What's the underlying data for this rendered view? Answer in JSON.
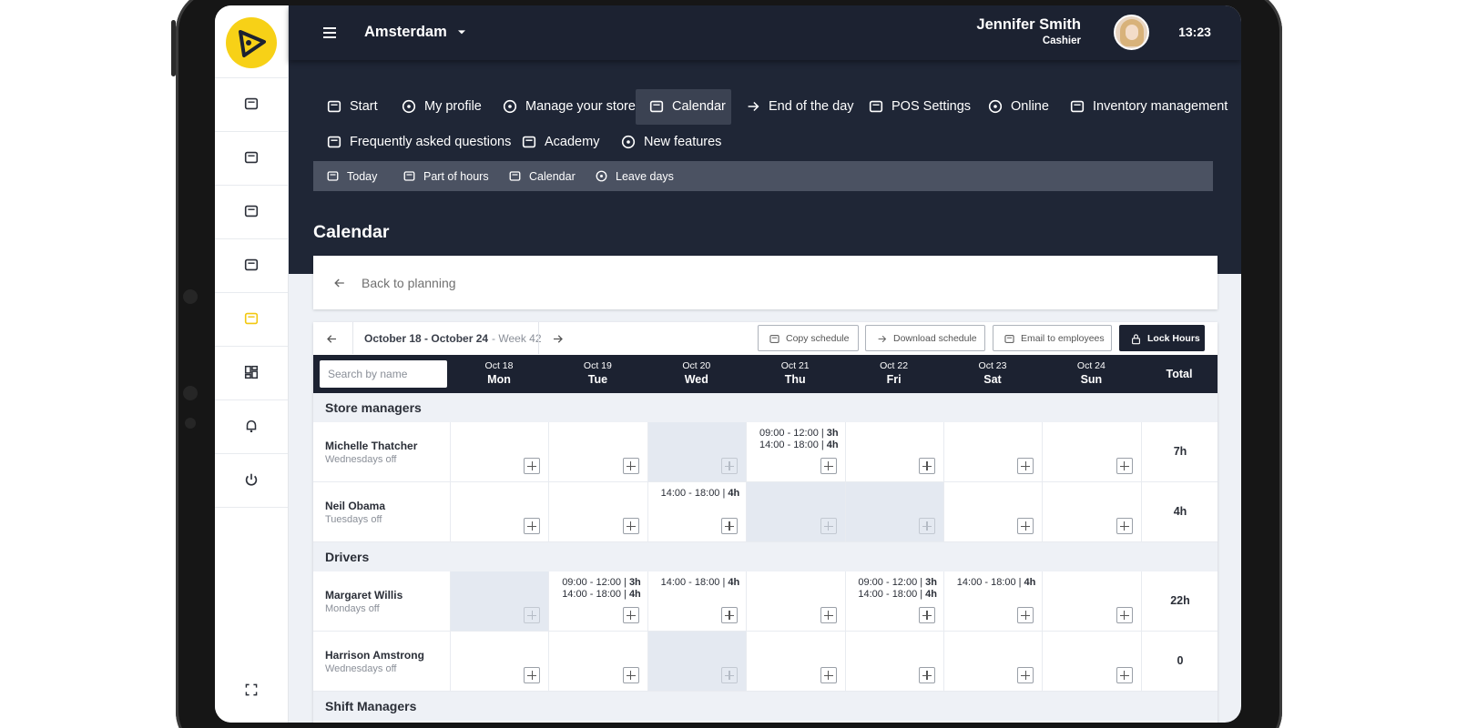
{
  "header": {
    "location": "Amsterdam",
    "user_name": "Jennifer Smith",
    "user_role": "Cashier",
    "time": "13:23"
  },
  "main_nav": [
    "Start",
    "My profile",
    "Manage your store",
    "Calendar",
    "End of the day",
    "POS Settings",
    "Online",
    "Inventory management",
    "Frequently asked questions",
    "Academy",
    "New features"
  ],
  "active_nav": 3,
  "sub_nav": [
    "Today",
    "Part of hours",
    "Calendar",
    "Leave days"
  ],
  "page_title": "Calendar",
  "back_link": "Back to planning",
  "toolbar": {
    "date_range": "October 18 - October 24",
    "week": "- Week 42",
    "buttons": [
      "Copy schedule",
      "Download schedule",
      "Email to employees",
      "Lock Hours"
    ]
  },
  "table": {
    "search_placeholder": "Search by name",
    "days": [
      {
        "date": "Oct 18",
        "day": "Mon"
      },
      {
        "date": "Oct 19",
        "day": "Tue"
      },
      {
        "date": "Oct 20",
        "day": "Wed"
      },
      {
        "date": "Oct 21",
        "day": "Thu"
      },
      {
        "date": "Oct 22",
        "day": "Fri"
      },
      {
        "date": "Oct 23",
        "day": "Sat"
      },
      {
        "date": "Oct 24",
        "day": "Sun"
      }
    ],
    "total_label": "Total",
    "groups": [
      {
        "name": "Store managers",
        "employees": [
          {
            "name": "Michelle Thatcher",
            "note": "Wednesdays off",
            "off_days": [
              2
            ],
            "total": "7h",
            "shifts": [
              [],
              [],
              [],
              [
                {
                  "time": "09:00 - 12:00 |",
                  "hours": "3h"
                },
                {
                  "time": "14:00 - 18:00 |",
                  "hours": "4h"
                }
              ],
              [],
              [],
              []
            ]
          },
          {
            "name": "Neil Obama",
            "note": "Tuesdays off",
            "off_days": [
              3,
              4
            ],
            "total": "4h",
            "shifts": [
              [],
              [],
              [
                {
                  "time": "14:00 - 18:00 |",
                  "hours": "4h"
                }
              ],
              [],
              [],
              [],
              []
            ]
          }
        ]
      },
      {
        "name": "Drivers",
        "employees": [
          {
            "name": "Margaret Willis",
            "note": "Mondays off",
            "off_days": [
              0
            ],
            "total": "22h",
            "shifts": [
              [],
              [
                {
                  "time": "09:00 - 12:00 |",
                  "hours": "3h"
                },
                {
                  "time": "14:00 - 18:00 |",
                  "hours": "4h"
                }
              ],
              [
                {
                  "time": "14:00 - 18:00 |",
                  "hours": "4h"
                }
              ],
              [],
              [
                {
                  "time": "09:00 - 12:00 |",
                  "hours": "3h"
                },
                {
                  "time": "14:00 - 18:00 |",
                  "hours": "4h"
                }
              ],
              [
                {
                  "time": "14:00 - 18:00 |",
                  "hours": "4h"
                }
              ],
              []
            ]
          },
          {
            "name": "Harrison Amstrong",
            "note": "Wednesdays off",
            "off_days": [
              2
            ],
            "total": "0",
            "shifts": [
              [],
              [],
              [],
              [],
              [],
              [],
              []
            ]
          }
        ]
      },
      {
        "name": "Shift Managers",
        "employees": []
      }
    ]
  }
}
